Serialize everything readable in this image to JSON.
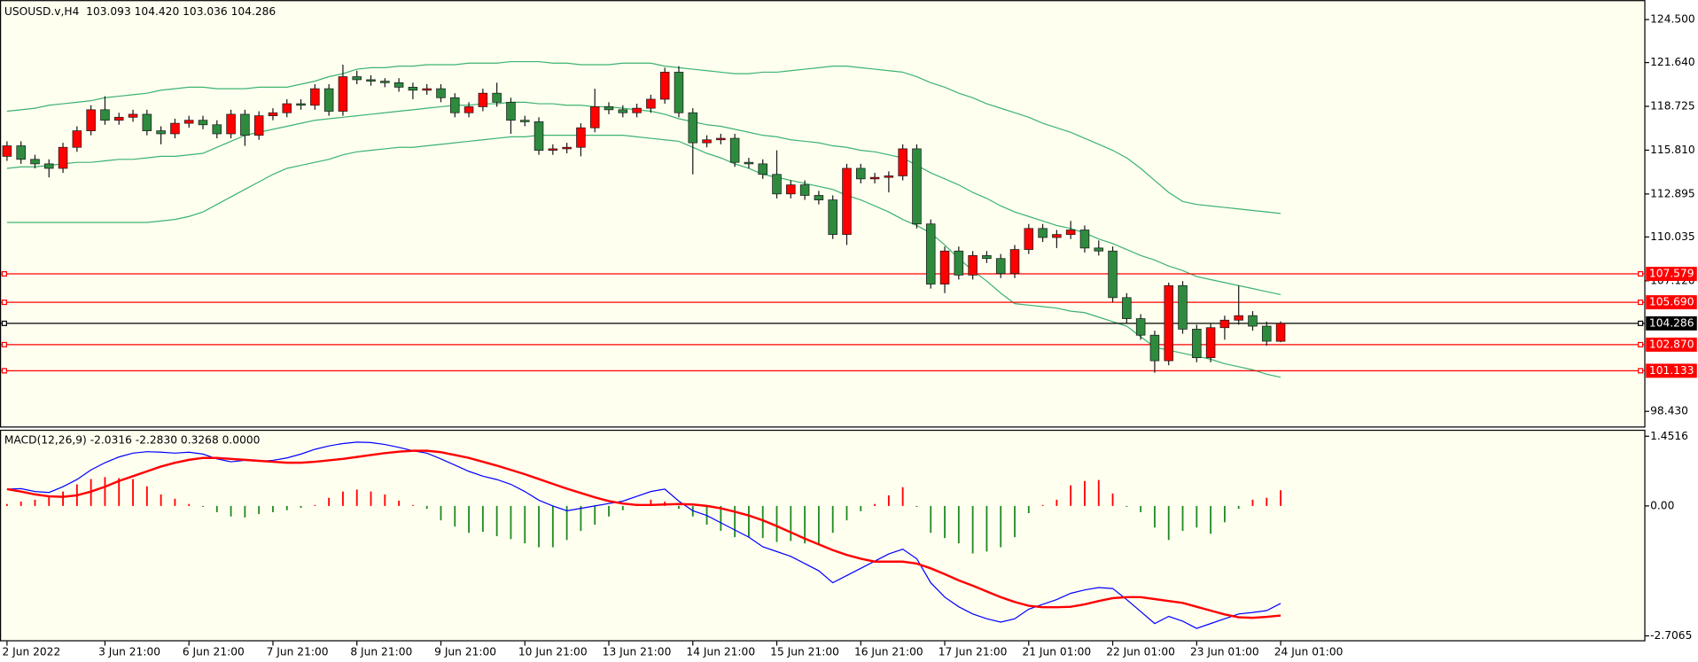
{
  "chart_data": [
    {
      "type": "candlestick",
      "title": "USOUSD.v,H4  103.093 104.420 103.036 104.286",
      "categories": [
        "2 Jun 2022",
        null,
        null,
        null,
        null,
        null,
        null,
        "3 Jun 21:00",
        null,
        null,
        null,
        null,
        null,
        "6 Jun 21:00",
        null,
        null,
        null,
        null,
        null,
        "7 Jun 21:00",
        null,
        null,
        null,
        null,
        null,
        "8 Jun 21:00",
        null,
        null,
        null,
        null,
        null,
        "9 Jun 21:00",
        null,
        null,
        null,
        null,
        null,
        "10 Jun 21:00",
        null,
        null,
        null,
        null,
        null,
        "13 Jun 21:00",
        null,
        null,
        null,
        null,
        null,
        "14 Jun 21:00",
        null,
        null,
        null,
        null,
        null,
        "15 Jun 21:00",
        null,
        null,
        null,
        null,
        null,
        "16 Jun 21:00",
        null,
        null,
        null,
        null,
        null,
        "17 Jun 21:00",
        null,
        null,
        null,
        null,
        null,
        "21 Jun 01:00",
        null,
        null,
        null,
        null,
        null,
        "22 Jun 01:00",
        null,
        null,
        null,
        null,
        null,
        "23 Jun 01:00",
        null,
        null,
        null,
        null,
        null,
        "24 Jun 01:00"
      ],
      "open": [
        115.4,
        116.1,
        115.2,
        114.9,
        114.6,
        116.0,
        117.1,
        118.5,
        117.8,
        118.0,
        118.2,
        117.1,
        116.9,
        117.6,
        117.8,
        117.5,
        116.9,
        118.2,
        116.8,
        118.1,
        118.3,
        118.9,
        118.8,
        119.9,
        118.4,
        120.7,
        120.5,
        120.4,
        120.3,
        120.0,
        119.8,
        119.9,
        119.3,
        118.3,
        118.7,
        119.6,
        119.0,
        117.8,
        117.7,
        115.8,
        115.9,
        116.0,
        117.3,
        118.7,
        118.5,
        118.3,
        118.6,
        119.2,
        121.0,
        118.3,
        116.3,
        116.5,
        116.6,
        115.0,
        114.9,
        114.2,
        112.9,
        113.5,
        112.8,
        112.5,
        110.2,
        114.6,
        113.9,
        114.0,
        114.1,
        115.9,
        110.9,
        106.9,
        109.1,
        107.5,
        108.8,
        108.6,
        107.6,
        109.2,
        110.6,
        110.0,
        110.2,
        110.5,
        109.3,
        109.1,
        106.0,
        104.6,
        103.5,
        101.8,
        106.8,
        103.9,
        102.0,
        104.0,
        104.5,
        104.8,
        104.1,
        103.093
      ],
      "high": [
        116.4,
        116.4,
        115.5,
        115.2,
        116.3,
        117.4,
        118.8,
        119.4,
        118.3,
        118.5,
        118.5,
        117.4,
        117.9,
        118.1,
        118.1,
        117.8,
        118.5,
        118.5,
        118.4,
        118.6,
        119.2,
        119.2,
        120.2,
        120.2,
        121.5,
        121.1,
        120.8,
        120.6,
        120.6,
        120.3,
        120.2,
        120.2,
        119.6,
        119.0,
        119.9,
        120.3,
        119.3,
        118.1,
        118.0,
        116.2,
        116.3,
        117.6,
        119.9,
        119.0,
        118.8,
        118.9,
        119.5,
        121.3,
        121.4,
        118.6,
        116.8,
        116.9,
        116.9,
        115.3,
        115.2,
        115.8,
        113.8,
        113.8,
        113.1,
        112.8,
        114.9,
        114.9,
        114.3,
        114.4,
        116.2,
        116.2,
        111.2,
        109.4,
        109.4,
        109.1,
        109.1,
        108.9,
        109.5,
        110.9,
        110.9,
        110.5,
        111.1,
        110.8,
        109.8,
        109.4,
        106.3,
        104.9,
        103.8,
        107.0,
        107.1,
        104.2,
        104.3,
        104.8,
        106.8,
        105.1,
        104.4,
        104.42
      ],
      "low": [
        115.1,
        114.9,
        114.6,
        114.0,
        114.3,
        115.7,
        116.8,
        117.5,
        117.5,
        117.7,
        116.8,
        116.2,
        116.6,
        117.3,
        117.2,
        116.6,
        116.6,
        116.1,
        116.5,
        117.8,
        118.0,
        118.5,
        118.5,
        118.1,
        118.1,
        120.2,
        120.1,
        120.0,
        119.7,
        119.2,
        119.5,
        119.0,
        118.0,
        118.0,
        118.4,
        118.7,
        116.9,
        117.4,
        115.5,
        115.5,
        115.6,
        115.4,
        117.0,
        118.2,
        118.0,
        118.0,
        118.3,
        118.9,
        118.0,
        114.2,
        116.0,
        116.2,
        114.7,
        114.6,
        113.9,
        112.6,
        112.6,
        112.5,
        112.2,
        109.9,
        109.5,
        113.6,
        113.6,
        113.0,
        113.8,
        110.6,
        106.6,
        106.3,
        107.2,
        107.2,
        108.3,
        107.3,
        107.3,
        108.9,
        109.7,
        109.3,
        109.9,
        109.0,
        108.8,
        105.7,
        104.3,
        103.2,
        101.0,
        101.5,
        103.6,
        101.7,
        101.7,
        103.2,
        104.2,
        103.8,
        102.8,
        103.036
      ],
      "close": [
        116.1,
        115.2,
        114.9,
        114.6,
        116.0,
        117.1,
        118.5,
        117.8,
        118.0,
        118.2,
        117.1,
        116.9,
        117.6,
        117.8,
        117.5,
        116.9,
        118.2,
        116.8,
        118.1,
        118.3,
        118.9,
        118.8,
        119.9,
        118.4,
        120.7,
        120.5,
        120.4,
        120.3,
        120.0,
        119.8,
        119.9,
        119.3,
        118.3,
        118.7,
        119.6,
        119.0,
        117.8,
        117.7,
        115.8,
        115.9,
        116.0,
        117.3,
        118.7,
        118.5,
        118.3,
        118.6,
        119.2,
        121.0,
        118.3,
        116.3,
        116.5,
        116.6,
        115.0,
        114.9,
        114.2,
        112.9,
        113.5,
        112.8,
        112.5,
        110.2,
        114.6,
        113.9,
        114.0,
        114.1,
        115.9,
        110.9,
        106.9,
        109.1,
        107.5,
        108.8,
        108.6,
        107.6,
        109.2,
        110.6,
        110.0,
        110.2,
        110.5,
        109.3,
        109.1,
        106.0,
        104.6,
        103.5,
        101.8,
        106.8,
        103.9,
        102.0,
        104.0,
        104.5,
        104.8,
        104.1,
        103.1,
        104.286
      ],
      "up_color": "#ff0000",
      "down_color": "#2e8b3e",
      "wick_color": "#1a1a1a",
      "bands": [
        {
          "color": "#3cb371",
          "values": [
            118.4,
            118.5,
            118.6,
            118.8,
            118.9,
            119.0,
            119.1,
            119.3,
            119.4,
            119.5,
            119.6,
            119.8,
            119.9,
            120.0,
            120.0,
            119.9,
            119.9,
            119.9,
            120.0,
            120.0,
            120.0,
            120.2,
            120.4,
            120.7,
            120.9,
            121.2,
            121.3,
            121.3,
            121.4,
            121.4,
            121.5,
            121.5,
            121.5,
            121.6,
            121.6,
            121.6,
            121.7,
            121.7,
            121.7,
            121.6,
            121.6,
            121.5,
            121.5,
            121.5,
            121.6,
            121.6,
            121.6,
            121.4,
            121.3,
            121.2,
            121.1,
            121.0,
            120.9,
            120.9,
            121.0,
            121.0,
            121.1,
            121.2,
            121.3,
            121.4,
            121.4,
            121.3,
            121.2,
            121.1,
            121.0,
            120.7,
            120.3,
            120.0,
            119.6,
            119.3,
            118.9,
            118.6,
            118.3,
            118.0,
            117.6,
            117.3,
            117.0,
            116.6,
            116.2,
            115.8,
            115.3,
            114.6,
            113.8,
            113.0,
            112.4,
            112.2,
            112.1,
            112.0,
            111.9,
            111.8,
            111.7,
            111.6
          ]
        },
        {
          "color": "#3cb371",
          "values": [
            114.6,
            114.7,
            114.7,
            114.8,
            114.9,
            115.0,
            115.0,
            115.1,
            115.2,
            115.2,
            115.3,
            115.4,
            115.4,
            115.5,
            115.6,
            116.0,
            116.4,
            116.8,
            117.0,
            117.2,
            117.4,
            117.6,
            117.8,
            117.9,
            118.0,
            118.1,
            118.2,
            118.3,
            118.4,
            118.5,
            118.6,
            118.7,
            118.8,
            118.8,
            118.9,
            118.9,
            119.0,
            119.0,
            118.9,
            118.9,
            118.8,
            118.8,
            118.7,
            118.7,
            118.6,
            118.5,
            118.4,
            118.2,
            117.9,
            117.7,
            117.5,
            117.4,
            117.2,
            117.0,
            116.8,
            116.7,
            116.5,
            116.4,
            116.3,
            116.1,
            116.0,
            115.8,
            115.7,
            115.5,
            115.3,
            114.8,
            114.3,
            113.9,
            113.5,
            113.0,
            112.6,
            112.1,
            111.7,
            111.4,
            111.1,
            110.8,
            110.6,
            110.3,
            109.9,
            109.6,
            109.2,
            108.8,
            108.5,
            108.1,
            107.8,
            107.4,
            107.2,
            107.0,
            106.8,
            106.6,
            106.4,
            106.2
          ]
        },
        {
          "color": "#3cb371",
          "values": [
            111.0,
            111.0,
            111.0,
            111.0,
            111.0,
            111.0,
            111.0,
            111.0,
            111.0,
            111.0,
            111.0,
            111.1,
            111.2,
            111.4,
            111.7,
            112.2,
            112.7,
            113.2,
            113.7,
            114.2,
            114.6,
            114.8,
            115.0,
            115.2,
            115.5,
            115.7,
            115.8,
            115.9,
            116.0,
            116.0,
            116.1,
            116.2,
            116.3,
            116.4,
            116.5,
            116.6,
            116.7,
            116.7,
            116.8,
            116.8,
            116.8,
            116.8,
            116.8,
            116.8,
            116.8,
            116.7,
            116.6,
            116.5,
            116.4,
            116.0,
            115.6,
            115.3,
            114.9,
            114.6,
            114.2,
            114.0,
            113.8,
            113.6,
            113.4,
            113.2,
            112.8,
            112.5,
            112.1,
            111.7,
            111.2,
            110.8,
            110.3,
            109.5,
            108.6,
            107.8,
            107.1,
            106.3,
            105.6,
            105.5,
            105.4,
            105.3,
            105.1,
            105.0,
            104.7,
            104.4,
            104.1,
            103.4,
            102.7,
            102.5,
            102.3,
            102.1,
            101.9,
            101.6,
            101.4,
            101.2,
            100.9,
            100.7
          ]
        }
      ],
      "levels": [
        {
          "value": 107.579,
          "color": "#ff0000"
        },
        {
          "value": 105.69,
          "label": "105.690",
          "color": "#ff0000"
        },
        {
          "value": 104.286,
          "color": "#000000"
        },
        {
          "value": 102.87,
          "label": "102.870",
          "color": "#ff0000"
        },
        {
          "value": 101.133,
          "color": "#ff0000"
        }
      ],
      "ylim": [
        97.57,
        125.58
      ],
      "yticks": [
        {
          "value": 124.5,
          "label": "124.500"
        },
        {
          "value": 121.64,
          "label": "121.640"
        },
        118.725,
        {
          "value": 115.81,
          "label": "115.810"
        },
        112.895,
        110.035,
        {
          "value": 107.12,
          "label": "107.120"
        },
        {
          "value": 98.43,
          "label": "98.430"
        }
      ]
    },
    {
      "type": "macd",
      "title": "MACD(12,26,9) -2.0316 -2.2830 0.3268 0.0000",
      "histogram": {
        "pos_color": "#ff0000",
        "neg_color": "#228b22",
        "values": [
          0.04,
          0.09,
          0.13,
          0.19,
          0.3,
          0.45,
          0.56,
          0.6,
          0.58,
          0.56,
          0.41,
          0.24,
          0.15,
          0.04,
          -0.02,
          -0.13,
          -0.22,
          -0.24,
          -0.17,
          -0.13,
          -0.09,
          -0.04,
          0.02,
          0.17,
          0.3,
          0.34,
          0.3,
          0.24,
          0.11,
          0.02,
          -0.06,
          -0.3,
          -0.43,
          -0.56,
          -0.54,
          -0.63,
          -0.69,
          -0.78,
          -0.86,
          -0.86,
          -0.71,
          -0.52,
          -0.39,
          -0.22,
          -0.09,
          0.04,
          0.13,
          0.09,
          -0.06,
          -0.22,
          -0.39,
          -0.52,
          -0.65,
          -0.65,
          -0.67,
          -0.75,
          -0.73,
          -0.78,
          -0.82,
          -0.56,
          -0.3,
          -0.11,
          0.04,
          0.22,
          0.39,
          -0.02,
          -0.56,
          -0.67,
          -0.78,
          -0.99,
          -0.95,
          -0.86,
          -0.65,
          -0.15,
          0.02,
          0.13,
          0.43,
          0.52,
          0.54,
          0.26,
          -0.02,
          -0.13,
          -0.45,
          -0.71,
          -0.52,
          -0.45,
          -0.58,
          -0.34,
          -0.06,
          0.13,
          0.17,
          0.3268
        ]
      },
      "series": [
        {
          "color": "#0000ff",
          "width": 1,
          "values": [
            0.35,
            0.36,
            0.3,
            0.28,
            0.4,
            0.55,
            0.75,
            0.9,
            1.02,
            1.1,
            1.13,
            1.12,
            1.1,
            1.12,
            1.08,
            0.98,
            0.92,
            0.95,
            0.93,
            0.95,
            1.0,
            1.08,
            1.18,
            1.25,
            1.3,
            1.33,
            1.32,
            1.28,
            1.22,
            1.15,
            1.1,
            0.98,
            0.85,
            0.72,
            0.62,
            0.55,
            0.45,
            0.3,
            0.12,
            0.0,
            -0.1,
            -0.05,
            0.0,
            0.05,
            0.1,
            0.2,
            0.3,
            0.35,
            0.1,
            -0.1,
            -0.2,
            -0.35,
            -0.5,
            -0.65,
            -0.85,
            -0.95,
            -1.05,
            -1.2,
            -1.35,
            -1.6,
            -1.45,
            -1.3,
            -1.15,
            -1.0,
            -0.9,
            -1.1,
            -1.6,
            -1.9,
            -2.1,
            -2.25,
            -2.35,
            -2.42,
            -2.35,
            -2.15,
            -2.05,
            -1.95,
            -1.82,
            -1.75,
            -1.7,
            -1.72,
            -1.95,
            -2.2,
            -2.45,
            -2.3,
            -2.4,
            -2.55,
            -2.45,
            -2.35,
            -2.25,
            -2.22,
            -2.18,
            -2.0316
          ]
        },
        {
          "color": "#ff0000",
          "width": 2,
          "values": [
            0.35,
            0.3,
            0.24,
            0.2,
            0.19,
            0.22,
            0.3,
            0.4,
            0.52,
            0.62,
            0.72,
            0.82,
            0.9,
            0.96,
            1.0,
            1.0,
            0.98,
            0.96,
            0.94,
            0.92,
            0.9,
            0.9,
            0.92,
            0.95,
            0.98,
            1.02,
            1.06,
            1.1,
            1.13,
            1.15,
            1.15,
            1.12,
            1.06,
            1.0,
            0.92,
            0.84,
            0.75,
            0.66,
            0.56,
            0.46,
            0.36,
            0.27,
            0.18,
            0.1,
            0.05,
            0.02,
            0.02,
            0.03,
            0.04,
            0.03,
            0.0,
            -0.05,
            -0.12,
            -0.2,
            -0.3,
            -0.42,
            -0.55,
            -0.68,
            -0.8,
            -0.92,
            -1.02,
            -1.1,
            -1.16,
            -1.16,
            -1.16,
            -1.2,
            -1.3,
            -1.42,
            -1.55,
            -1.66,
            -1.78,
            -1.9,
            -2.0,
            -2.08,
            -2.11,
            -2.11,
            -2.1,
            -2.05,
            -1.98,
            -1.92,
            -1.9,
            -1.9,
            -1.94,
            -1.98,
            -2.02,
            -2.1,
            -2.18,
            -2.26,
            -2.32,
            -2.33,
            -2.31,
            -2.283
          ]
        }
      ],
      "ylim": [
        -2.7065,
        1.4516
      ],
      "yticks": [
        1.4516,
        {
          "value": 0,
          "label": "0.00"
        },
        -2.7065
      ]
    }
  ]
}
